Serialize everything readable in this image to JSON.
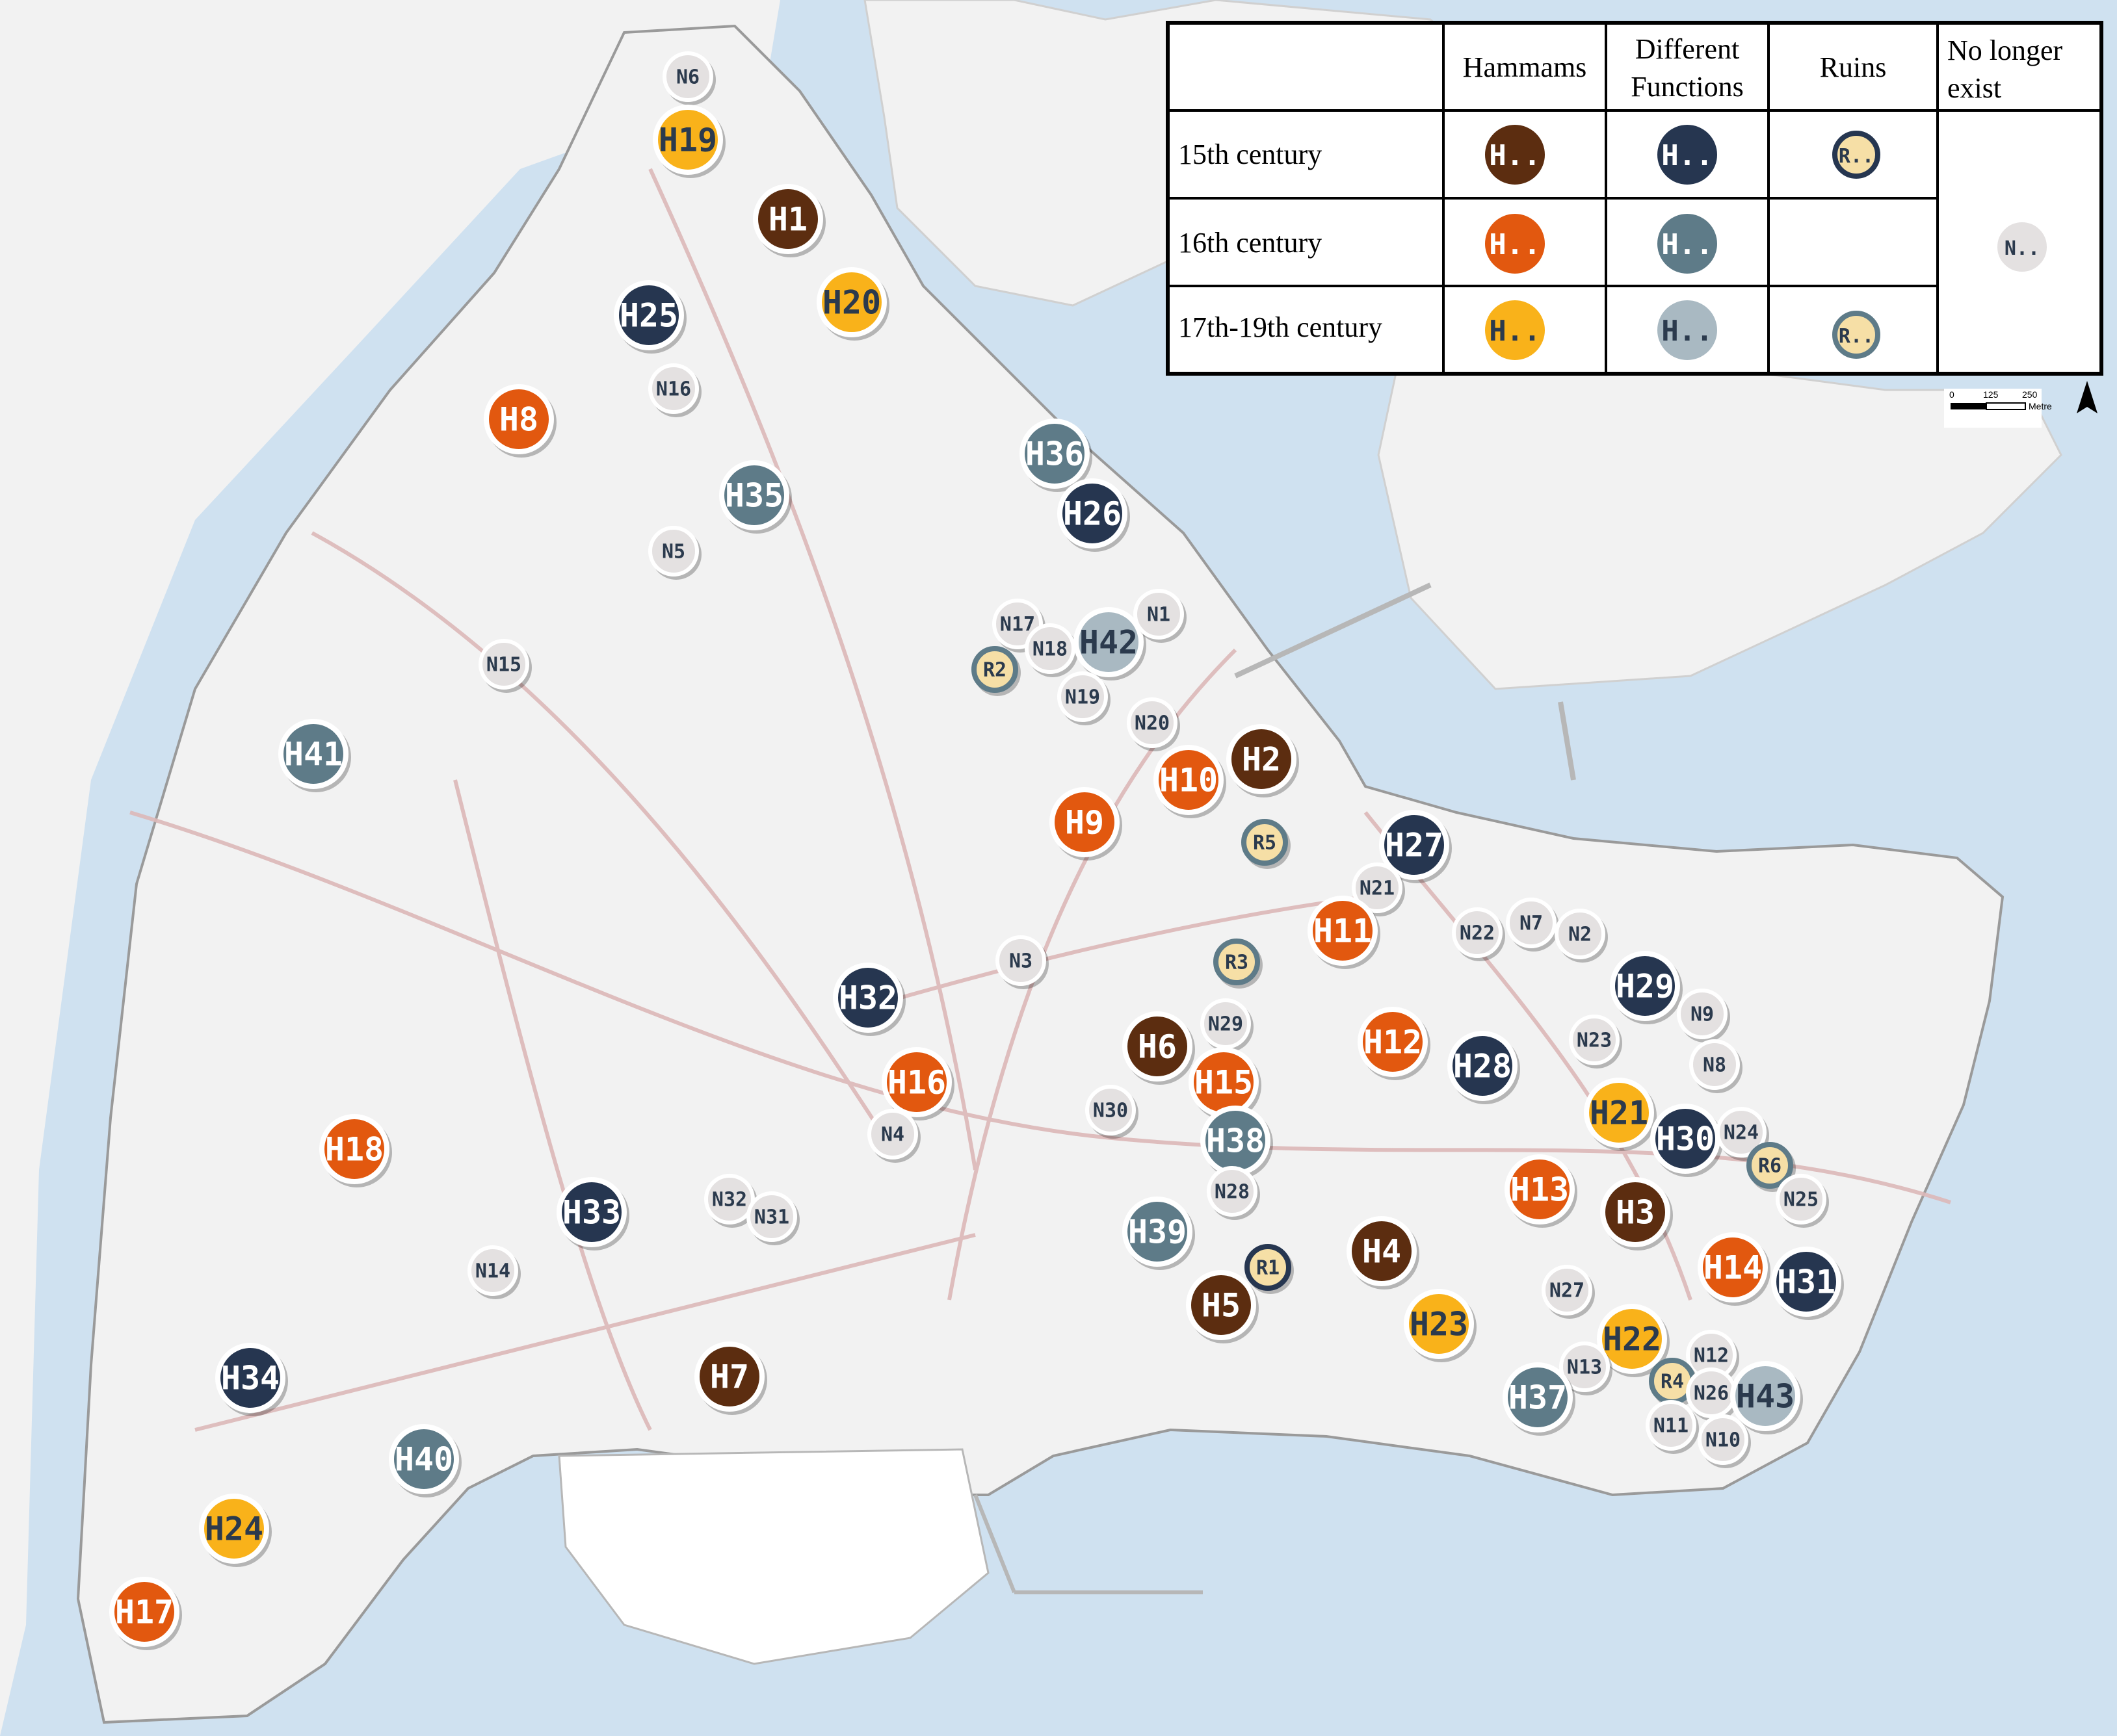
{
  "colors": {
    "water": "#cfe1f0",
    "land": "#f2f2f2",
    "land_outline": "#c8c8c8",
    "road": "#dcb8b8",
    "h15": "#5c2d10",
    "h16": "#e2580f",
    "h17": "#f9b21a",
    "df15": "#263650",
    "df16": "#5e7b88",
    "df17": "#a9b9c2",
    "ruin_fill": "#f6dfa6",
    "gone": "#e4e1e1",
    "text_light": "#ffffff",
    "text_dark": "#2b3a4d"
  },
  "legend": {
    "headers": {
      "hammams": "Hammams",
      "different_1": "Different",
      "different_2": "Functions",
      "ruins": "Ruins",
      "nle_1": "No longer",
      "nle_2": "exist"
    },
    "rows": [
      "15th century",
      "16th century",
      "17th-19th century"
    ],
    "sample_h": "H..",
    "sample_r": "R..",
    "sample_n": "N.."
  },
  "scale_bar": {
    "ticks": [
      "0",
      "125",
      "250"
    ],
    "unit": "Metre"
  },
  "markers": [
    {
      "id": "N6",
      "cat": "gone"
    },
    {
      "id": "H19",
      "cat": "h17"
    },
    {
      "id": "H1",
      "cat": "h15"
    },
    {
      "id": "H20",
      "cat": "h17"
    },
    {
      "id": "H25",
      "cat": "df15"
    },
    {
      "id": "N16",
      "cat": "gone"
    },
    {
      "id": "H8",
      "cat": "h16"
    },
    {
      "id": "H35",
      "cat": "df16"
    },
    {
      "id": "H36",
      "cat": "df16"
    },
    {
      "id": "H26",
      "cat": "df15"
    },
    {
      "id": "N5",
      "cat": "gone"
    },
    {
      "id": "N17",
      "cat": "gone"
    },
    {
      "id": "N18",
      "cat": "gone"
    },
    {
      "id": "H42",
      "cat": "df17"
    },
    {
      "id": "N1",
      "cat": "gone"
    },
    {
      "id": "R2",
      "cat": "ruin16"
    },
    {
      "id": "N19",
      "cat": "gone"
    },
    {
      "id": "N15",
      "cat": "gone"
    },
    {
      "id": "N20",
      "cat": "gone"
    },
    {
      "id": "H41",
      "cat": "df16"
    },
    {
      "id": "H10",
      "cat": "h16"
    },
    {
      "id": "H2",
      "cat": "h15"
    },
    {
      "id": "H9",
      "cat": "h16"
    },
    {
      "id": "R5",
      "cat": "ruin16"
    },
    {
      "id": "H27",
      "cat": "df15"
    },
    {
      "id": "N21",
      "cat": "gone"
    },
    {
      "id": "H11",
      "cat": "h16"
    },
    {
      "id": "N22",
      "cat": "gone"
    },
    {
      "id": "N7",
      "cat": "gone"
    },
    {
      "id": "N2",
      "cat": "gone"
    },
    {
      "id": "N3",
      "cat": "gone"
    },
    {
      "id": "R3",
      "cat": "ruin16"
    },
    {
      "id": "H29",
      "cat": "df15"
    },
    {
      "id": "N9",
      "cat": "gone"
    },
    {
      "id": "H32",
      "cat": "df15"
    },
    {
      "id": "N29",
      "cat": "gone"
    },
    {
      "id": "H6",
      "cat": "h15"
    },
    {
      "id": "H12",
      "cat": "h16"
    },
    {
      "id": "N23",
      "cat": "gone"
    },
    {
      "id": "N8",
      "cat": "gone"
    },
    {
      "id": "H28",
      "cat": "df15"
    },
    {
      "id": "H16",
      "cat": "h16"
    },
    {
      "id": "H15",
      "cat": "h16"
    },
    {
      "id": "N30",
      "cat": "gone"
    },
    {
      "id": "H21",
      "cat": "h17"
    },
    {
      "id": "H30",
      "cat": "df15"
    },
    {
      "id": "N24",
      "cat": "gone"
    },
    {
      "id": "H38",
      "cat": "df16"
    },
    {
      "id": "N4",
      "cat": "gone"
    },
    {
      "id": "H18",
      "cat": "h16"
    },
    {
      "id": "R6",
      "cat": "ruin16"
    },
    {
      "id": "H13",
      "cat": "h16"
    },
    {
      "id": "N25",
      "cat": "gone"
    },
    {
      "id": "N28",
      "cat": "gone"
    },
    {
      "id": "N32",
      "cat": "gone"
    },
    {
      "id": "H33",
      "cat": "df15"
    },
    {
      "id": "N31",
      "cat": "gone"
    },
    {
      "id": "H3",
      "cat": "h15"
    },
    {
      "id": "H39",
      "cat": "df16"
    },
    {
      "id": "H4",
      "cat": "h15"
    },
    {
      "id": "R1",
      "cat": "ruin15"
    },
    {
      "id": "H14",
      "cat": "h16"
    },
    {
      "id": "N14",
      "cat": "gone"
    },
    {
      "id": "H31",
      "cat": "df15"
    },
    {
      "id": "N27",
      "cat": "gone"
    },
    {
      "id": "H5",
      "cat": "h15"
    },
    {
      "id": "H23",
      "cat": "h17"
    },
    {
      "id": "H22",
      "cat": "h17"
    },
    {
      "id": "H34",
      "cat": "df15"
    },
    {
      "id": "H7",
      "cat": "h15"
    },
    {
      "id": "N12",
      "cat": "gone"
    },
    {
      "id": "N13",
      "cat": "gone"
    },
    {
      "id": "R4",
      "cat": "ruin16"
    },
    {
      "id": "N26",
      "cat": "gone"
    },
    {
      "id": "H43",
      "cat": "df17"
    },
    {
      "id": "H37",
      "cat": "df16"
    },
    {
      "id": "N11",
      "cat": "gone"
    },
    {
      "id": "N10",
      "cat": "gone"
    },
    {
      "id": "H40",
      "cat": "df16"
    },
    {
      "id": "H24",
      "cat": "h17"
    },
    {
      "id": "H17",
      "cat": "h16"
    }
  ]
}
